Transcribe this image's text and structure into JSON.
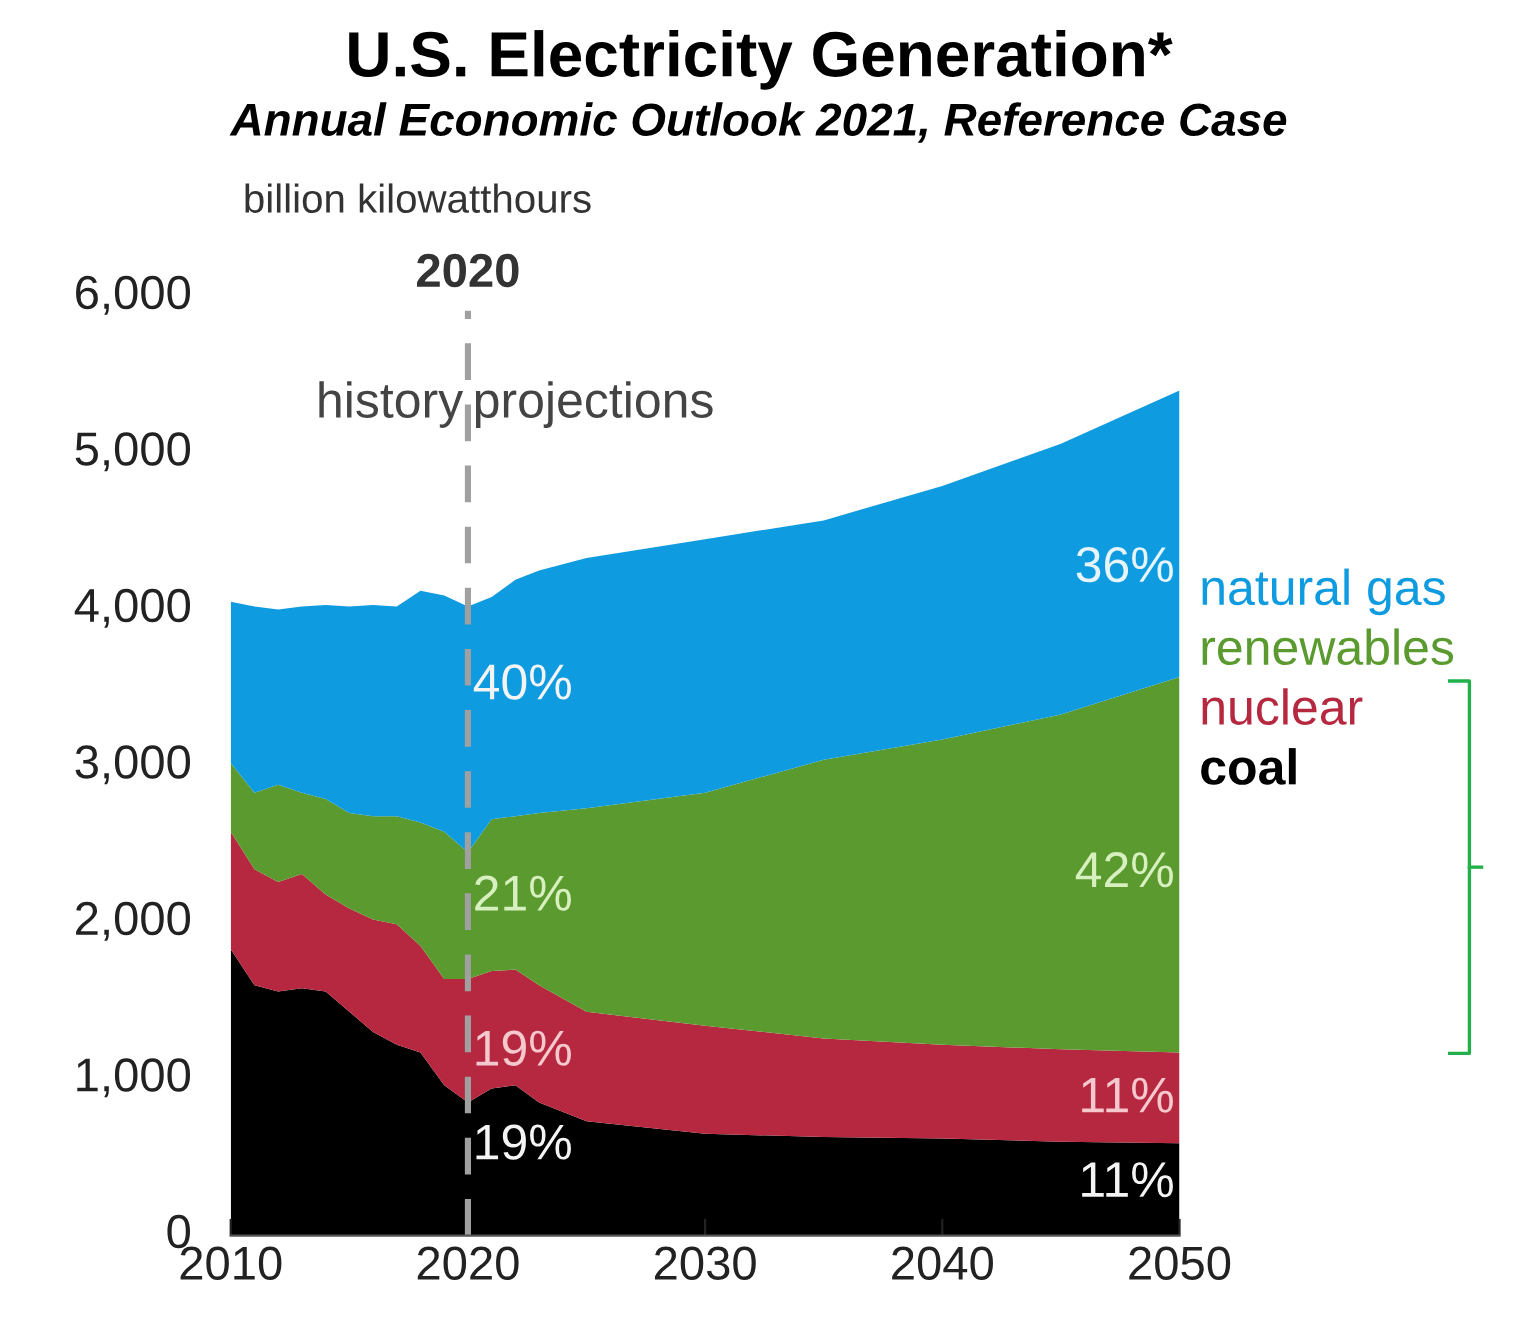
{
  "chart_data": {
    "type": "area",
    "stacked": true,
    "title": "U.S. Electricity Generation*",
    "subtitle": "Annual Economic Outlook 2021, Reference Case",
    "ylabel": "billion kilowatthours",
    "x": [
      2010,
      2011,
      2012,
      2013,
      2014,
      2015,
      2016,
      2017,
      2018,
      2019,
      2020,
      2021,
      2022,
      2023,
      2025,
      2030,
      2035,
      2040,
      2045,
      2050
    ],
    "series": [
      {
        "name": "coal",
        "color": "#000000",
        "values": [
          1830,
          1600,
          1560,
          1580,
          1560,
          1430,
          1300,
          1220,
          1170,
          960,
          850,
          940,
          960,
          850,
          730,
          650,
          630,
          620,
          600,
          590
        ]
      },
      {
        "name": "nuclear",
        "color": "#b5283f",
        "values": [
          750,
          740,
          700,
          730,
          620,
          660,
          720,
          770,
          680,
          680,
          790,
          750,
          740,
          750,
          700,
          690,
          630,
          600,
          590,
          580
        ]
      },
      {
        "name": "renewables",
        "color": "#5a9a2f",
        "values": [
          440,
          490,
          620,
          520,
          610,
          610,
          660,
          690,
          790,
          940,
          810,
          970,
          980,
          1100,
          1300,
          1490,
          1780,
          1950,
          2140,
          2400
        ]
      },
      {
        "name": "natural gas",
        "color": "#0f9be0",
        "values": [
          1030,
          1190,
          1120,
          1190,
          1240,
          1320,
          1350,
          1340,
          1480,
          1510,
          1570,
          1420,
          1510,
          1550,
          1600,
          1620,
          1530,
          1620,
          1730,
          1830
        ]
      }
    ],
    "xlim": [
      2010,
      2050
    ],
    "ylim": [
      0,
      6000
    ],
    "xticks": [
      2010,
      2020,
      2030,
      2040,
      2050
    ],
    "yticks": [
      {
        "value": 0,
        "label": "0"
      },
      {
        "value": 1000,
        "label": "1,000"
      },
      {
        "value": 2000,
        "label": "2,000"
      },
      {
        "value": 3000,
        "label": "3,000"
      },
      {
        "value": 4000,
        "label": "4,000"
      },
      {
        "value": 5000,
        "label": "5,000"
      },
      {
        "value": 6000,
        "label": "6,000"
      }
    ],
    "grid": false,
    "legend": "right",
    "ref_lines": [
      {
        "axis": "x",
        "value": 2020,
        "label": "2020",
        "color": "#a0a0a0",
        "line_style": "dashed"
      }
    ],
    "annotations": [
      "history",
      "projections",
      "40%",
      "21%",
      "19%",
      "19%",
      "36%",
      "42%",
      "11%",
      "11%"
    ]
  }
}
